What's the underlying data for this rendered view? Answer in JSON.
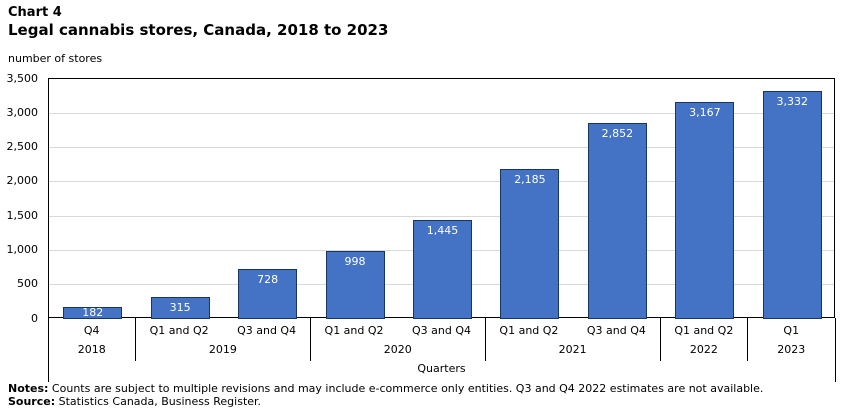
{
  "header": {
    "chart_label": "Chart 4",
    "title": "Legal cannabis stores, Canada, 2018 to 2023",
    "axis_unit": "number of stores"
  },
  "chart_data": {
    "type": "bar",
    "title": "Legal cannabis stores, Canada, 2018 to 2023",
    "ylabel": "number of stores",
    "xlabel": "Quarters",
    "ylim": [
      0,
      3500
    ],
    "ytick_step": 500,
    "grid": true,
    "legend": "none",
    "bar_fill_color": "#4472c4",
    "bar_border_color": "#17375e",
    "grid_color": "#d9d9d9",
    "value_label_color": "#ffffff",
    "groups": [
      {
        "year": "2018",
        "bars": [
          {
            "quarter": "Q4",
            "value": 182,
            "label": "182"
          }
        ]
      },
      {
        "year": "2019",
        "bars": [
          {
            "quarter": "Q1 and Q2",
            "value": 315,
            "label": "315"
          },
          {
            "quarter": "Q3 and Q4",
            "value": 728,
            "label": "728"
          }
        ]
      },
      {
        "year": "2020",
        "bars": [
          {
            "quarter": "Q1 and Q2",
            "value": 998,
            "label": "998"
          },
          {
            "quarter": "Q3 and Q4",
            "value": 1445,
            "label": "1,445"
          }
        ]
      },
      {
        "year": "2021",
        "bars": [
          {
            "quarter": "Q1 and Q2",
            "value": 2185,
            "label": "2,185"
          },
          {
            "quarter": "Q3 and Q4",
            "value": 2852,
            "label": "2,852"
          }
        ]
      },
      {
        "year": "2022",
        "bars": [
          {
            "quarter": "Q1 and Q2",
            "value": 3167,
            "label": "3,167"
          }
        ]
      },
      {
        "year": "2023",
        "bars": [
          {
            "quarter": "Q1",
            "value": 3332,
            "label": "3,332"
          }
        ]
      }
    ]
  },
  "footer": {
    "notes_label": "Notes:",
    "notes_text": " Counts are subject to multiple revisions and may include e-commerce only entities. Q3 and Q4 2022 estimates are not available.",
    "source_label": "Source:",
    "source_text": " Statistics Canada, Business Register."
  }
}
